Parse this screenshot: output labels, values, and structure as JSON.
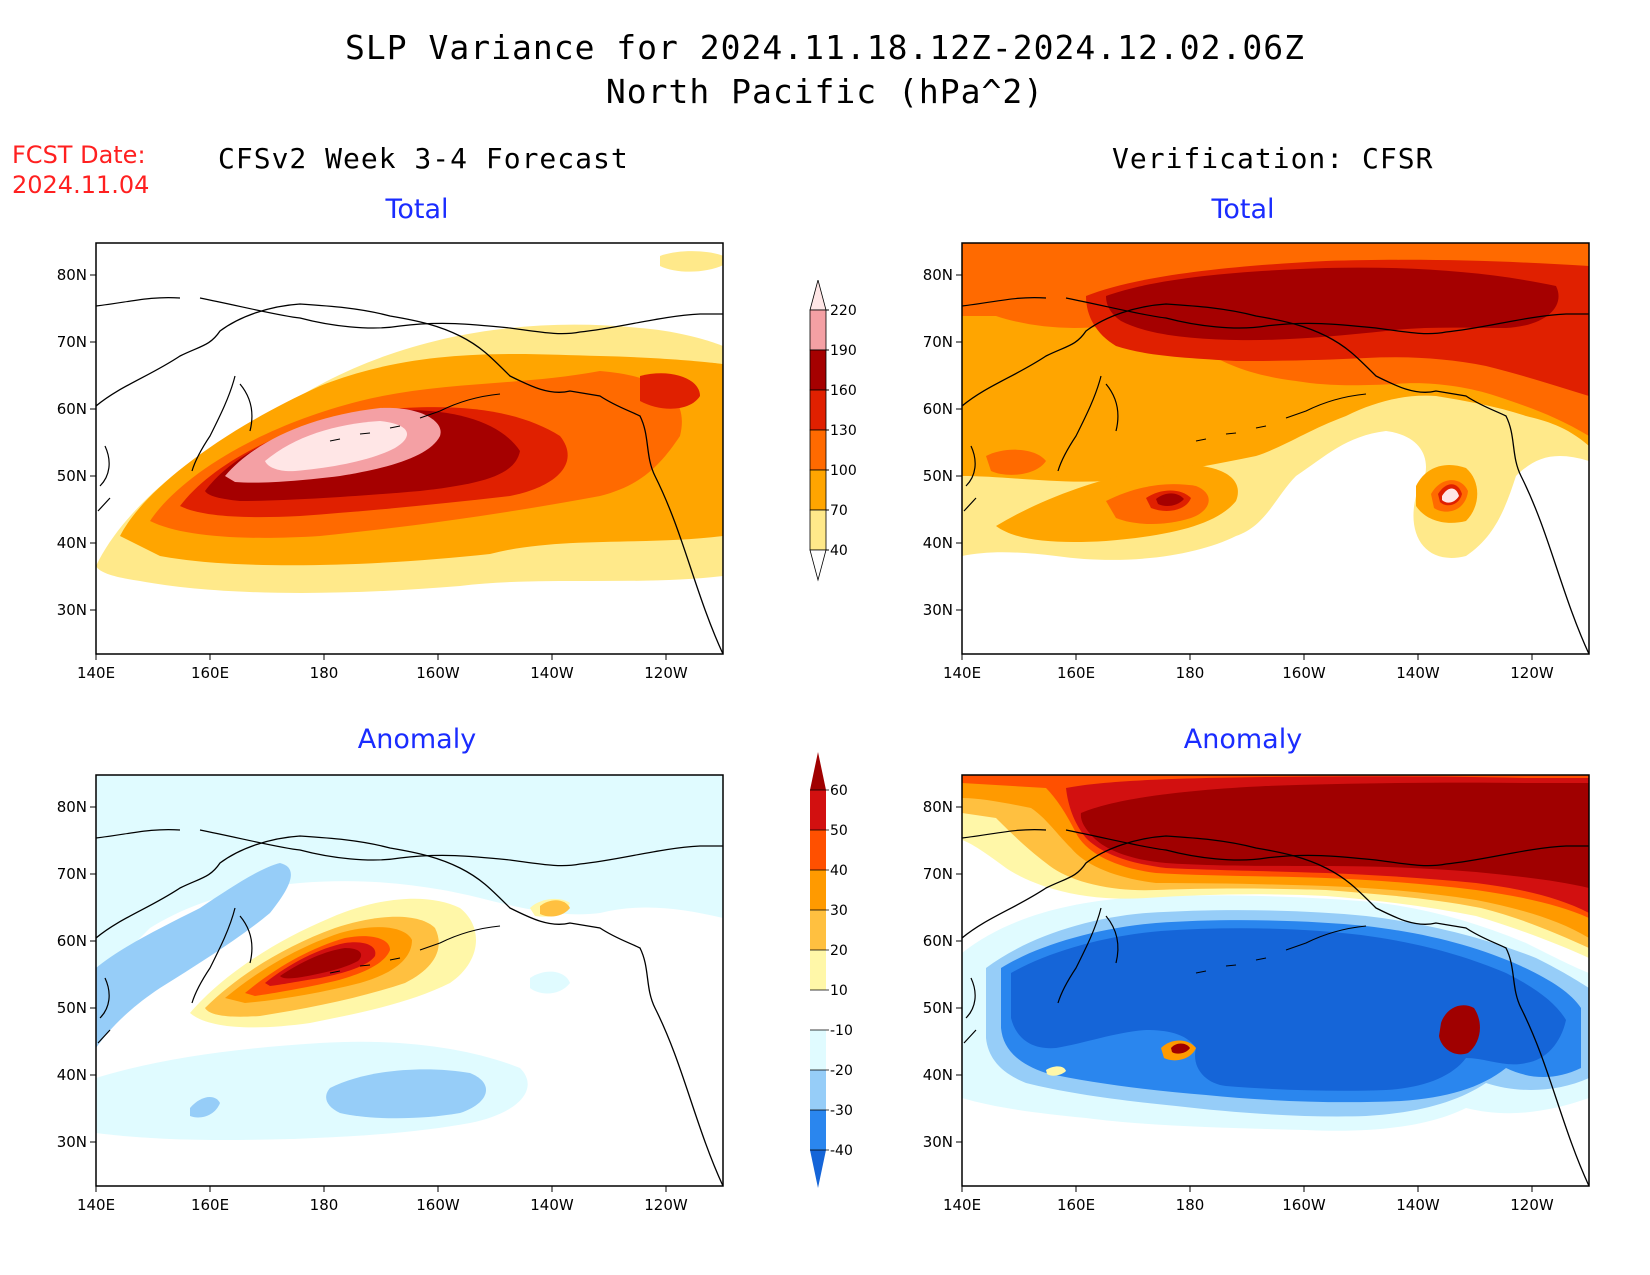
{
  "header": {
    "title_line1": "SLP Variance for 2024.11.18.12Z-2024.12.02.06Z",
    "title_line2": "North Pacific (hPa^2)",
    "fcst_label": "FCST Date:",
    "fcst_date": "2024.11.04",
    "left_column_title": "CFSv2 Week 3-4 Forecast",
    "right_column_title": "Verification: CFSR"
  },
  "panels": {
    "fcst_total_title": "Total",
    "obs_total_title": "Total",
    "fcst_anom_title": "Anomaly",
    "obs_anom_title": "Anomaly"
  },
  "axes": {
    "lon_labels": [
      "140E",
      "160E",
      "180",
      "160W",
      "140W",
      "120W"
    ],
    "lat_labels": [
      "80N",
      "70N",
      "60N",
      "50N",
      "40N",
      "30N"
    ]
  },
  "colorbars": {
    "total": {
      "levels": [
        "40",
        "70",
        "100",
        "130",
        "160",
        "190",
        "220"
      ],
      "colors": [
        "#ffe98a",
        "#ffa500",
        "#ff6a00",
        "#e02000",
        "#a50000",
        "#f4a0a4",
        "#ffe6e6"
      ]
    },
    "anomaly": {
      "levels": [
        "-40",
        "-30",
        "-20",
        "-10",
        "10",
        "20",
        "30",
        "40",
        "50",
        "60"
      ],
      "colors": [
        "#1565d8",
        "#2a86ee",
        "#96cdf8",
        "#e0fbff",
        "#ffffff",
        "#fff7a8",
        "#ffc040",
        "#ff9a00",
        "#ff5000",
        "#d21010",
        "#a00000"
      ]
    }
  }
}
